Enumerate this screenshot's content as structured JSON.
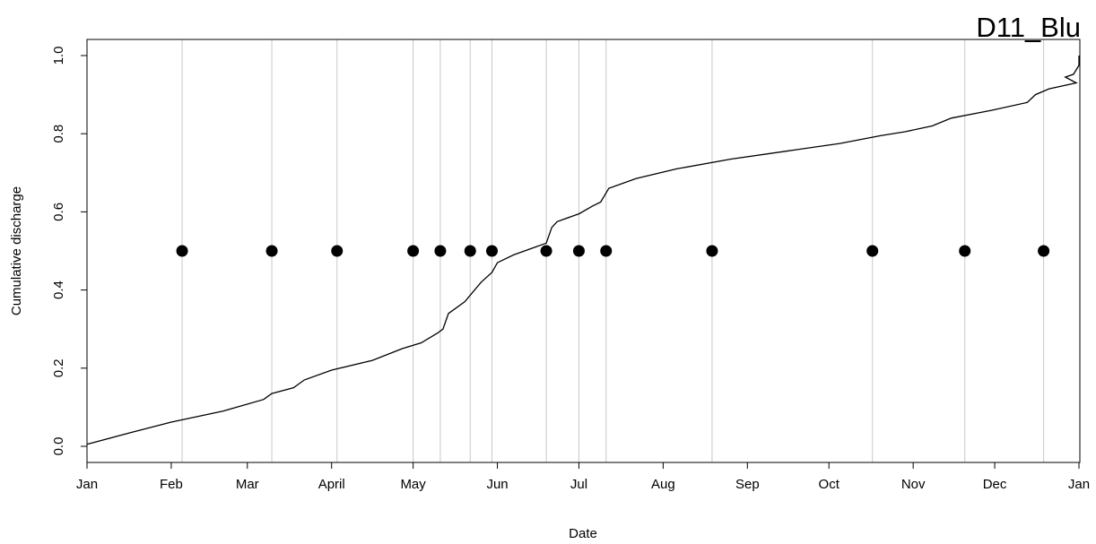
{
  "chart_data": {
    "type": "line",
    "title": "D11_Blu",
    "xlabel": "Date",
    "ylabel": "Cumulative discharge",
    "xlim": [
      "Jan 1",
      "Jan 1 (next year)"
    ],
    "ylim": [
      0.0,
      1.0
    ],
    "x_ticks": [
      {
        "label": "Jan",
        "day": 0
      },
      {
        "label": "Feb",
        "day": 31
      },
      {
        "label": "Mar",
        "day": 59
      },
      {
        "label": "April",
        "day": 90
      },
      {
        "label": "May",
        "day": 120
      },
      {
        "label": "Jun",
        "day": 151
      },
      {
        "label": "Jul",
        "day": 181
      },
      {
        "label": "Aug",
        "day": 212
      },
      {
        "label": "Sep",
        "day": 243
      },
      {
        "label": "Oct",
        "day": 273
      },
      {
        "label": "Nov",
        "day": 304
      },
      {
        "label": "Dec",
        "day": 334
      },
      {
        "label": "Jan",
        "day": 365
      }
    ],
    "y_ticks": [
      "0.0",
      "0.2",
      "0.4",
      "0.6",
      "0.8",
      "1.0"
    ],
    "grid": "vertical lines at sampling dates",
    "series": [
      {
        "line": [
          [
            "Jan 1",
            0.005
          ],
          [
            "Jan 17",
            0.035
          ],
          [
            "Feb 1",
            0.062
          ],
          [
            "Feb 20",
            0.09
          ],
          [
            "Mar 7",
            0.12
          ],
          [
            "Mar 10",
            0.135
          ],
          [
            "Mar 18",
            0.15
          ],
          [
            "Mar 22",
            0.17
          ],
          [
            "Apr 1",
            0.195
          ],
          [
            "Apr 16",
            0.22
          ],
          [
            "Apr 27",
            0.25
          ],
          [
            "May 4",
            0.265
          ],
          [
            "May 10",
            0.29
          ],
          [
            "May 12",
            0.3
          ],
          [
            "May 14",
            0.34
          ],
          [
            "May 20",
            0.37
          ],
          [
            "May 26",
            0.42
          ],
          [
            "May 30",
            0.445
          ],
          [
            "Jun 1",
            0.47
          ],
          [
            "Jun 7",
            0.49
          ],
          [
            "Jun 15",
            0.51
          ],
          [
            "Jun 19",
            0.52
          ],
          [
            "Jun 21",
            0.56
          ],
          [
            "Jun 23",
            0.575
          ],
          [
            "Jul 1",
            0.595
          ],
          [
            "Jul 6",
            0.615
          ],
          [
            "Jul 9",
            0.625
          ],
          [
            "Jul 12",
            0.66
          ],
          [
            "Jul 22",
            0.685
          ],
          [
            "Aug 6",
            0.71
          ],
          [
            "Aug 26",
            0.735
          ],
          [
            "Sep 15",
            0.755
          ],
          [
            "Oct 5",
            0.775
          ],
          [
            "Oct 20",
            0.795
          ],
          [
            "Oct 29",
            0.805
          ],
          [
            "Nov 8",
            0.82
          ],
          [
            "Nov 15",
            0.84
          ],
          [
            "Nov 30",
            0.86
          ],
          [
            "Dec 13",
            0.88
          ],
          [
            "Dec 16",
            0.9
          ],
          [
            "Dec 21",
            0.915
          ],
          [
            "Dec 31",
            0.93
          ],
          [
            "Jan 10 (next year)",
            0.945
          ],
          [
            "Jan 13 (next year)",
            0.952
          ],
          [
            "Jan 16 (next year)",
            0.975
          ],
          [
            "Jan 17 (next year)",
            0.99
          ],
          [
            "Jan 1 (next year)",
            1.0
          ]
        ]
      },
      {
        "sampling_points": [
          [
            "Feb 5",
            0.5
          ],
          [
            "Mar 10",
            0.5
          ],
          [
            "Apr 3",
            0.5
          ],
          [
            "May 1",
            0.5
          ],
          [
            "May 11",
            0.5
          ],
          [
            "May 22",
            0.5
          ],
          [
            "May 30",
            0.5
          ],
          [
            "Jun 19",
            0.5
          ],
          [
            "Jul 1",
            0.5
          ],
          [
            "Jul 11",
            0.5
          ],
          [
            "Aug 19",
            0.5
          ],
          [
            "Oct 17",
            0.5
          ],
          [
            "Nov 20",
            0.5
          ],
          [
            "Dec 19",
            0.5
          ]
        ]
      }
    ]
  }
}
